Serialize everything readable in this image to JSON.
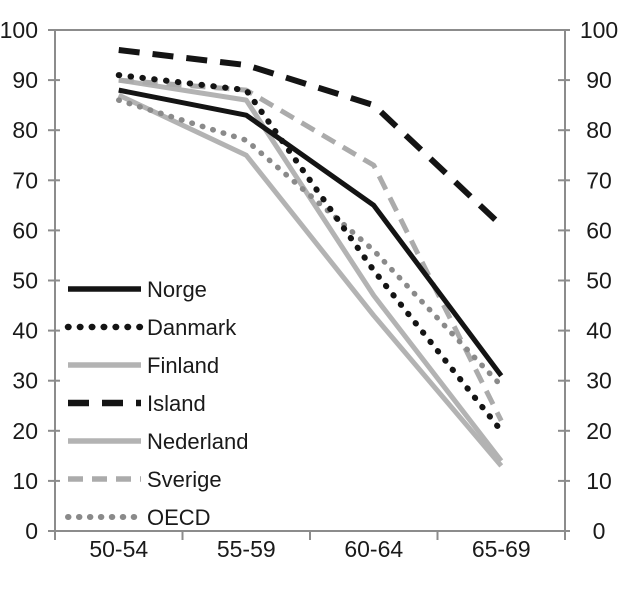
{
  "chart_data": {
    "type": "line",
    "title": "",
    "xlabel": "",
    "ylabel": "",
    "categories": [
      "50-54",
      "55-59",
      "60-64",
      "65-69"
    ],
    "series": [
      {
        "name": "Norge",
        "values": [
          88,
          83,
          65,
          31
        ],
        "color": "#141414",
        "line_style": "solid",
        "width": 5
      },
      {
        "name": "Danmark",
        "values": [
          91,
          88,
          52,
          20
        ],
        "color": "#141414",
        "line_style": "dot",
        "width": 6
      },
      {
        "name": "Finland",
        "values": [
          87,
          75,
          43,
          13
        ],
        "color": "#b3b3b3",
        "line_style": "solid",
        "width": 5
      },
      {
        "name": "Island",
        "values": [
          96,
          93,
          85,
          61
        ],
        "color": "#141414",
        "line_style": "dash",
        "width": 6
      },
      {
        "name": "Nederland",
        "values": [
          90,
          86,
          47,
          14
        ],
        "color": "#b3b3b3",
        "line_style": "solid",
        "width": 5
      },
      {
        "name": "Sverige",
        "values": [
          90,
          88,
          73,
          22
        ],
        "color": "#ababab",
        "line_style": "dash",
        "width": 5
      },
      {
        "name": "OECD",
        "values": [
          86,
          78,
          56,
          29
        ],
        "color": "#8a8a8a",
        "line_style": "dot",
        "width": 5.5
      }
    ],
    "y_axis_left": {
      "min": 0,
      "max": 100,
      "step": 10,
      "tick_labels": [
        "0",
        "10",
        "20",
        "30",
        "40",
        "50",
        "60",
        "70",
        "80",
        "90",
        "100"
      ]
    },
    "y_axis_right": {
      "min": 0,
      "max": 100,
      "step": 10,
      "tick_labels": [
        "0",
        "10",
        "20",
        "30",
        "40",
        "50",
        "60",
        "70",
        "80",
        "90",
        "100"
      ]
    },
    "legend": {
      "position": "inside-left-bottom",
      "entries": [
        "Norge",
        "Danmark",
        "Finland",
        "Island",
        "Nederland",
        "Sverige",
        "OECD"
      ]
    },
    "grid": "off",
    "axis_color": "#8c8c8c"
  }
}
